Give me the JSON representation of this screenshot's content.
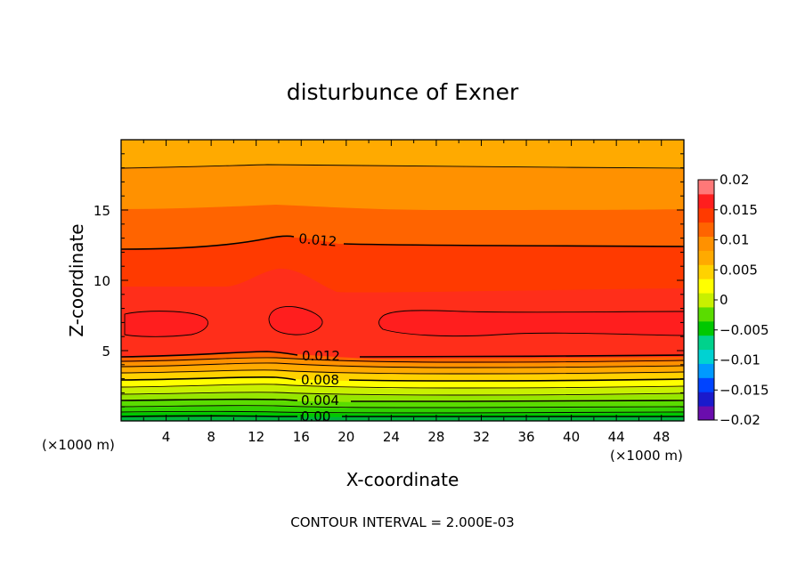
{
  "chart_data": {
    "type": "heatmap",
    "subtype": "filled-contour",
    "title": "disturbunce of Exner",
    "xlabel": "X-coordinate",
    "ylabel": "Z-coordinate",
    "x_unit": "(×1000 m)",
    "y_unit": "(×1000 m)",
    "xlim": [
      0,
      50
    ],
    "ylim": [
      0,
      20
    ],
    "x_ticks": [
      4,
      8,
      12,
      16,
      20,
      24,
      28,
      32,
      36,
      40,
      44,
      48
    ],
    "y_ticks": [
      5,
      10,
      15
    ],
    "footer": "CONTOUR INTERVAL = 2.000E-03",
    "contour_interval": 0.002,
    "colorbar": {
      "min": -0.02,
      "max": 0.02,
      "step": 0.0025,
      "tick_labels": [
        "0.02",
        "0.015",
        "0.01",
        "0.005",
        "0",
        "−0.005",
        "−0.01",
        "−0.015",
        "−0.02"
      ],
      "colors": [
        "#6a0dad",
        "#1a1acc",
        "#0044ff",
        "#0099ff",
        "#00d2d2",
        "#00d28c",
        "#00c800",
        "#5adc00",
        "#c8f000",
        "#ffff00",
        "#ffd200",
        "#ffaa00",
        "#ff9100",
        "#ff6400",
        "#ff3a00",
        "#ff1e1e",
        "#ff7878"
      ]
    },
    "contour_labels": [
      "0.012",
      "0.012",
      "0.008",
      "0.004",
      "0.00"
    ],
    "field_samples": {
      "z": [
        0.25,
        1.0,
        2.0,
        2.8,
        3.6,
        4.3,
        5.5,
        7.0,
        9.0,
        11.0,
        13.5,
        16.5,
        19.0
      ],
      "value": [
        0.0005,
        0.002,
        0.005,
        0.0075,
        0.0095,
        0.0115,
        0.0135,
        0.0152,
        0.0135,
        0.0128,
        0.011,
        0.0095,
        0.0085
      ]
    }
  }
}
